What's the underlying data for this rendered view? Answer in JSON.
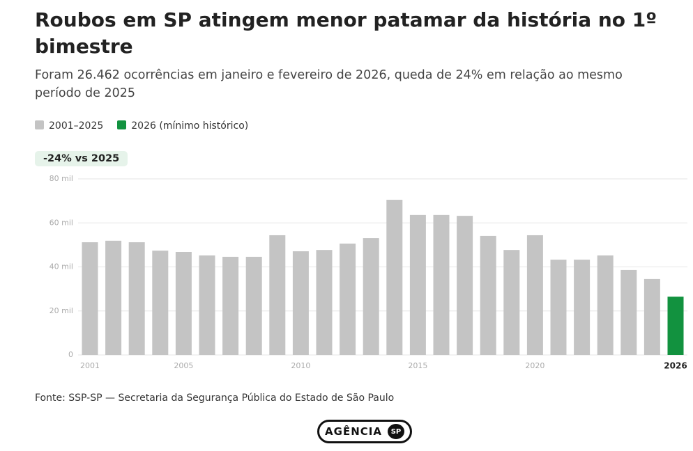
{
  "chart_data": {
    "type": "bar",
    "title": "Roubos em SP atingem menor patamar da história no 1º bimestre",
    "subtitle": "Foram 26.462 ocorrências em janeiro e fevereiro de 2026, queda de 24% em relação ao mesmo período de 2025",
    "annotation": "-24% vs 2025",
    "source": "Fonte: SSP-SP — Secretaria da Segurança Pública do Estado de São Paulo",
    "categories": [
      "2001",
      null,
      null,
      null,
      "2005",
      null,
      null,
      null,
      null,
      "2010",
      null,
      null,
      null,
      null,
      "2015",
      null,
      null,
      null,
      null,
      "2020",
      null,
      null,
      null,
      null,
      null,
      "2026"
    ],
    "series": [
      {
        "name": "2001–2025",
        "color": "#c4c4c4",
        "values": [
          51.2,
          51.9,
          51.2,
          47.4,
          46.8,
          45.2,
          44.6,
          44.6,
          54.4,
          47.1,
          47.7,
          50.6,
          53.1,
          70.5,
          63.6,
          63.6,
          63.2,
          54.1,
          47.7,
          54.4,
          43.3,
          43.3,
          45.2,
          38.6,
          34.5,
          null
        ]
      },
      {
        "name": "2026 (mínimo histórico)",
        "color": "#12923f",
        "values": [
          null,
          null,
          null,
          null,
          null,
          null,
          null,
          null,
          null,
          null,
          null,
          null,
          null,
          null,
          null,
          null,
          null,
          null,
          null,
          null,
          null,
          null,
          null,
          null,
          null,
          26.462
        ]
      }
    ],
    "ylim": [
      0,
      80
    ],
    "yticks": [
      0,
      {
        "value": 20,
        "label": "20 mil"
      },
      {
        "value": 40,
        "label": "40 mil"
      },
      {
        "value": 60,
        "label": "60 mil"
      },
      {
        "value": 80,
        "label": "80 mil"
      }
    ],
    "grid": true
  },
  "logo": {
    "text": "AGÊNCIA",
    "badge": "SP"
  }
}
